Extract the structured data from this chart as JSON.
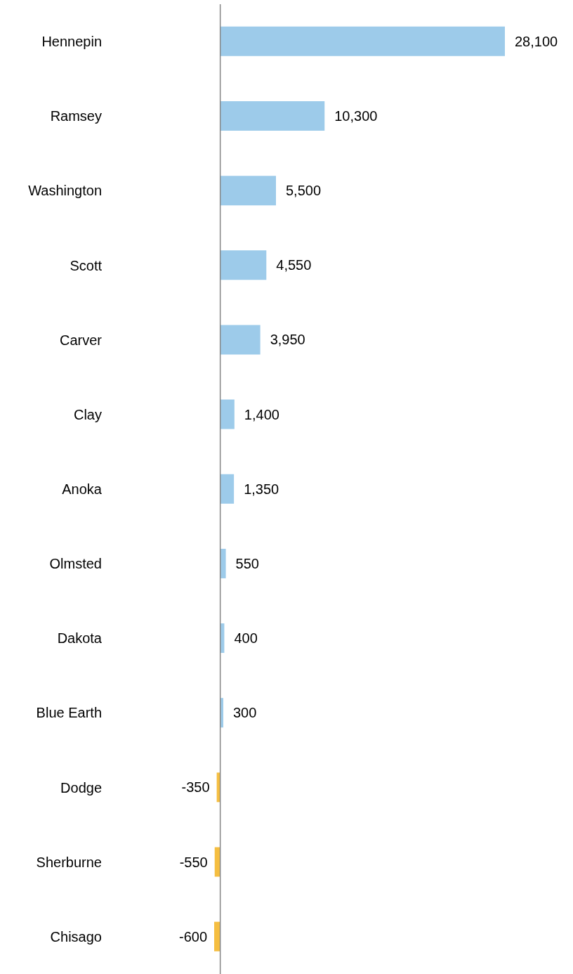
{
  "chart_data": {
    "type": "bar",
    "orientation": "horizontal",
    "categories": [
      "Hennepin",
      "Ramsey",
      "Washington",
      "Scott",
      "Carver",
      "Clay",
      "Anoka",
      "Olmsted",
      "Dakota",
      "Blue Earth",
      "Dodge",
      "Sherburne",
      "Chisago"
    ],
    "values": [
      28100,
      10300,
      5500,
      4550,
      3950,
      1400,
      1350,
      550,
      400,
      300,
      -350,
      -550,
      -600
    ],
    "colors": [
      "#9dcbea",
      "#9dcbea",
      "#9dcbea",
      "#9dcbea",
      "#9dcbea",
      "#9dcbea",
      "#9dcbea",
      "#9dcbea",
      "#9dcbea",
      "#9dcbea",
      "#f5be41",
      "#f5be41",
      "#f5be41"
    ],
    "value_labels": [
      "28,100",
      "10,300",
      "5,500",
      "4,550",
      "3,950",
      "1,400",
      "1,350",
      "550",
      "400",
      "300",
      "-350",
      "-550",
      "-600"
    ],
    "grid": false,
    "legend": false
  }
}
